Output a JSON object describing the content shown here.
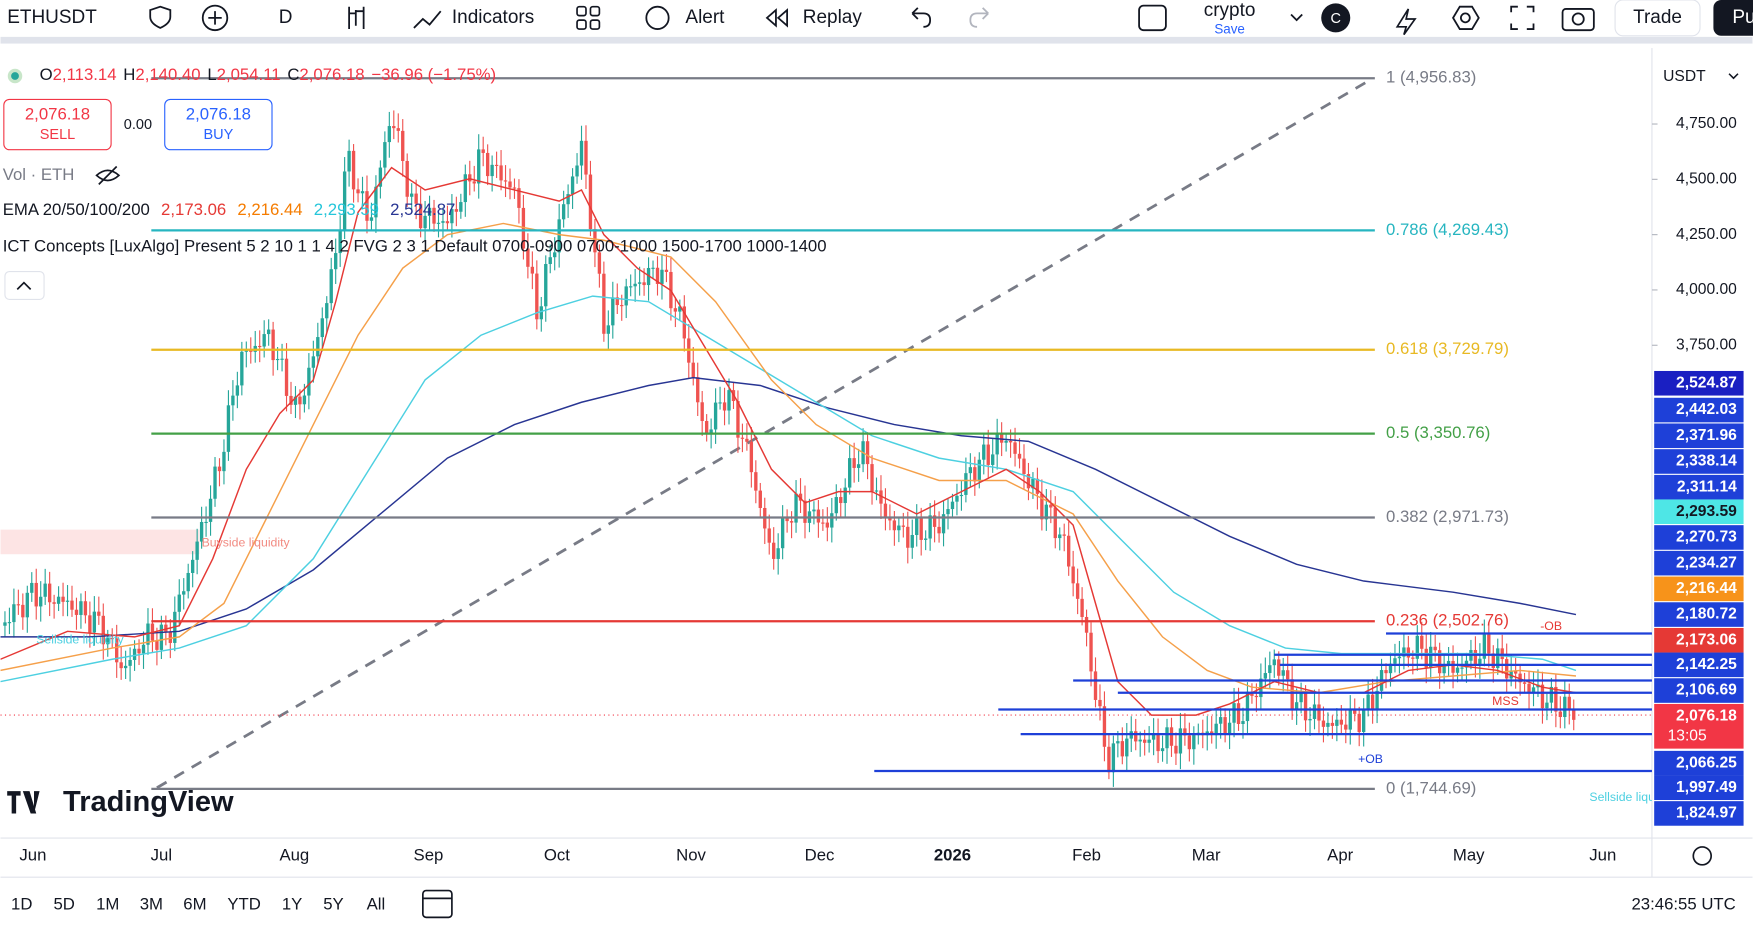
{
  "toolbar": {
    "symbol": "ETHUSDT",
    "interval": "D",
    "indicators": "Indicators",
    "alert": "Alert",
    "replay": "Replay",
    "layout_name": "crypto",
    "layout_status": "Save",
    "avatar": "C",
    "trade": "Trade",
    "publish": "Pu"
  },
  "legend": {
    "ohlc": [
      {
        "key": "O",
        "value": "2,113.14"
      },
      {
        "key": "H",
        "value": "2,140.40"
      },
      {
        "key": "L",
        "value": "2,054.11"
      },
      {
        "key": "C",
        "value": "2,076.18"
      }
    ],
    "change": "−36.96 (−1.75%)",
    "sell_price": "2,076.18",
    "sell": "SELL",
    "spread": "0.00",
    "buy_price": "2,076.18",
    "buy": "BUY",
    "volume": "Vol · ETH",
    "ema_name": "EMA 20/50/100/200",
    "ema_values": [
      {
        "text": "2,173.06",
        "color": "#e53935"
      },
      {
        "text": "2,216.44",
        "color": "#f57c00"
      },
      {
        "text": "2,293.59",
        "color": "#26c6da"
      },
      {
        "text": "2,524.87",
        "color": "#283593"
      }
    ],
    "ict": "ICT Concepts [LuxAlgo] Present 5 2 10 1 1 4 2 FVG 2 3 1 Default 0700-0900 0700-1000 1500-1700 1000-1400"
  },
  "chart": {
    "currency": "USDT",
    "watermark": "TradingView",
    "price_ticks": [
      {
        "value": 4750,
        "label": "4,750.00"
      },
      {
        "value": 4500,
        "label": "4,500.00"
      },
      {
        "value": 4250,
        "label": "4,250.00"
      },
      {
        "value": 4000,
        "label": "4,000.00"
      },
      {
        "value": 3750,
        "label": "3,750.00"
      }
    ],
    "fib_levels": [
      {
        "value": 4956.83,
        "label": "1 (4,956.83)",
        "color": "#787b86"
      },
      {
        "value": 4269.43,
        "label": "0.786 (4,269.43)",
        "color": "#26b5c0"
      },
      {
        "value": 3729.79,
        "label": "0.618 (3,729.79)",
        "color": "#e8b923"
      },
      {
        "value": 3350.76,
        "label": "0.5 (3,350.76)",
        "color": "#43a047"
      },
      {
        "value": 2971.73,
        "label": "0.382 (2,971.73)",
        "color": "#787b86"
      },
      {
        "value": 2502.76,
        "label": "0.236 (2,502.76)",
        "color": "#e53935"
      },
      {
        "value": 1744.69,
        "label": "0 (1,744.69)",
        "color": "#787b86"
      }
    ],
    "annotations": [
      {
        "text": "Buyside liquidity",
        "color": "#f28b82"
      },
      {
        "text": "Sellside liquidity",
        "color": "#4dd0e1"
      },
      {
        "text": "-OB",
        "color": "#e53935"
      },
      {
        "text": "MSS",
        "color": "#e53935"
      },
      {
        "text": "+OB",
        "color": "#1e40d8"
      },
      {
        "text": "Sellside liquidity",
        "color": "#4dd0e1"
      }
    ],
    "price_labels": [
      {
        "label": "2,524.87",
        "color": "#1a1fc2",
        "text_color": "#ffffff"
      },
      {
        "label": "2,442.03",
        "color": "#1e40d8",
        "text_color": "#ffffff"
      },
      {
        "label": "2,371.96",
        "color": "#1e40d8",
        "text_color": "#ffffff"
      },
      {
        "label": "2,338.14",
        "color": "#1e40d8",
        "text_color": "#ffffff"
      },
      {
        "label": "2,311.14",
        "color": "#1e40d8",
        "text_color": "#ffffff"
      },
      {
        "label": "2,293.59",
        "color": "#4ee6e6",
        "text_color": "#131722"
      },
      {
        "label": "2,270.73",
        "color": "#1e40d8",
        "text_color": "#ffffff"
      },
      {
        "label": "2,234.27",
        "color": "#1e40d8",
        "text_color": "#ffffff"
      },
      {
        "label": "2,216.44",
        "color": "#f7931a",
        "text_color": "#ffffff"
      },
      {
        "label": "2,180.72",
        "color": "#1e40d8",
        "text_color": "#ffffff"
      },
      {
        "label": "2,173.06",
        "color": "#e53935",
        "text_color": "#ffffff"
      },
      {
        "label": "2,142.25",
        "color": "#1e40d8",
        "text_color": "#ffffff"
      },
      {
        "label": "2,106.69",
        "color": "#1e40d8",
        "text_color": "#ffffff"
      },
      {
        "label": "2,076.18",
        "color": "#f23645",
        "text_color": "#ffffff"
      },
      {
        "label": "2,066.25",
        "color": "#1e40d8",
        "text_color": "#ffffff"
      },
      {
        "label": "1,997.49",
        "color": "#1e40d8",
        "text_color": "#ffffff"
      },
      {
        "label": "1,824.97",
        "color": "#1e40d8",
        "text_color": "#ffffff"
      }
    ],
    "countdown": "13:05",
    "time_labels": [
      "Jun",
      "Jul",
      "Aug",
      "Sep",
      "Oct",
      "Nov",
      "Dec",
      "2026",
      "Feb",
      "Mar",
      "Apr",
      "May",
      "Jun"
    ]
  },
  "footer": {
    "ranges": [
      "1D",
      "5D",
      "1M",
      "3M",
      "6M",
      "YTD",
      "1Y",
      "5Y",
      "All"
    ],
    "clock": "23:46:55 UTC"
  }
}
